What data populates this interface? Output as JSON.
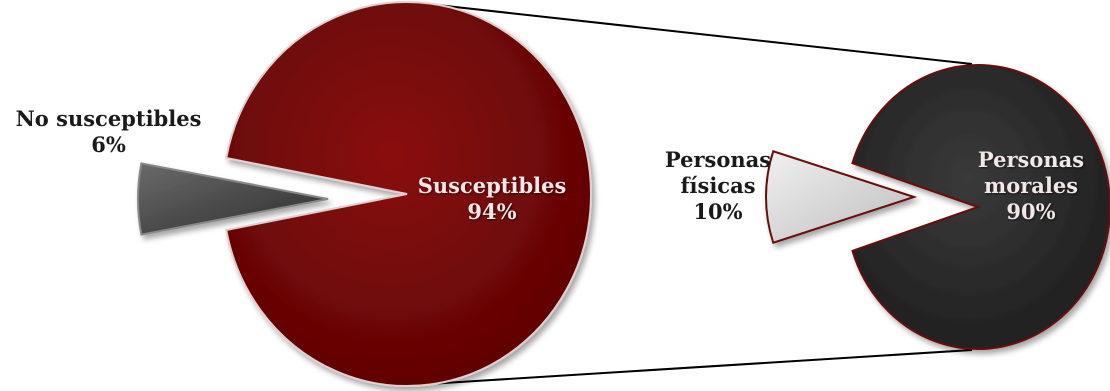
{
  "chart_data": [
    {
      "type": "pie",
      "slices": [
        {
          "label": "Susceptibles",
          "value": 94,
          "value_label": "94%",
          "color": "#740606",
          "exploded": false
        },
        {
          "label": "No susceptibles",
          "value": 6,
          "value_label": "6%",
          "color": "#4a4a4a",
          "exploded": true
        }
      ]
    },
    {
      "type": "pie",
      "slices": [
        {
          "label": "Personas morales",
          "value": 90,
          "value_label": "90%",
          "color": "#2e2e2e",
          "exploded": false
        },
        {
          "label": "Personas físicas",
          "value": 10,
          "value_label": "10%",
          "color": "#d6d6d6",
          "exploded": true
        }
      ]
    }
  ],
  "labels": {
    "susceptibles": {
      "line1": "Susceptibles",
      "line2": "94%"
    },
    "no_susceptibles": {
      "line1": "No susceptibles",
      "line2": "6%"
    },
    "personas_morales": {
      "line1": "Personas",
      "line2": "morales",
      "line3": "90%"
    },
    "personas_fisicas": {
      "line1": "Personas",
      "line2": "físicas",
      "line3": "10%"
    }
  },
  "colors": {
    "connector": "#000000",
    "outline_dark": "#5a0a0a"
  }
}
